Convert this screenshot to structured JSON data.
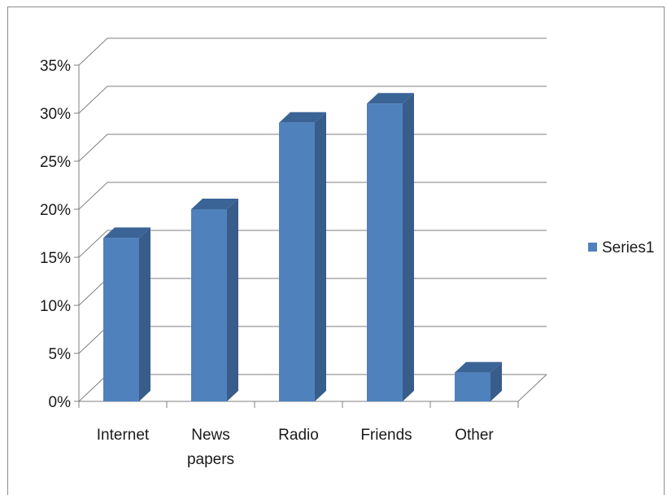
{
  "chart_data": {
    "type": "bar",
    "style": "3d-column",
    "categories": [
      "Internet",
      "News papers",
      "Radio",
      "Friends",
      "Other"
    ],
    "category_lines": [
      [
        "Internet"
      ],
      [
        "News",
        "papers"
      ],
      [
        "Radio"
      ],
      [
        "Friends"
      ],
      [
        "Other"
      ]
    ],
    "series": [
      {
        "name": "Series1",
        "values": [
          17,
          20,
          29,
          31,
          3
        ]
      }
    ],
    "ylim": [
      0,
      35
    ],
    "y_ticks": [
      "0%",
      "5%",
      "10%",
      "15%",
      "20%",
      "25%",
      "30%",
      "35%"
    ],
    "grid": true,
    "legend": "right",
    "colors": {
      "front": "#4f81bd",
      "side": "#385d8a",
      "top": "#3b6496",
      "grid": "#7f7f7f"
    }
  }
}
